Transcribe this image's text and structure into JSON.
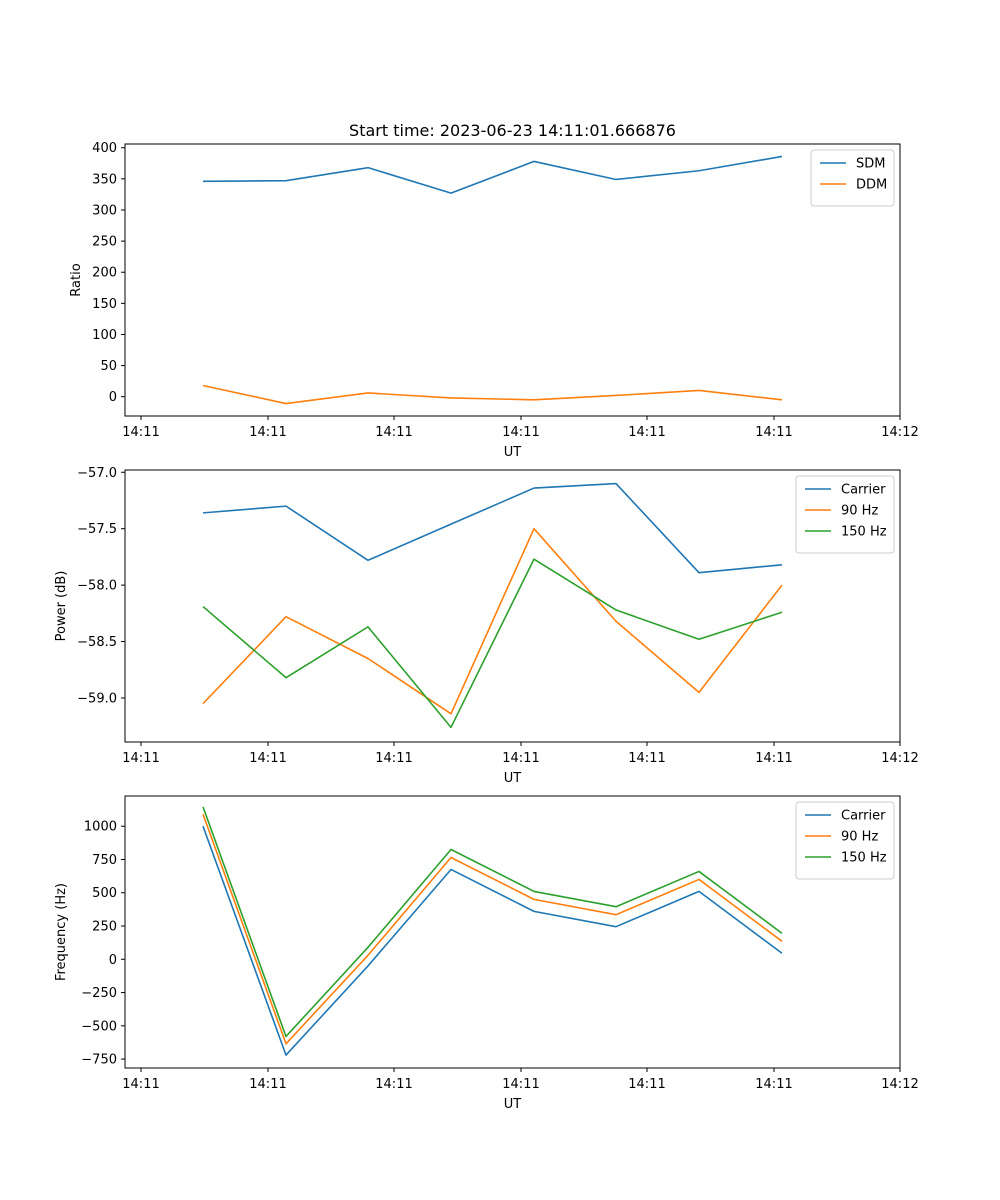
{
  "title": "Start time: 2023-06-23 14:11:01.666876",
  "chart_data": [
    {
      "type": "line",
      "ylabel": "Ratio",
      "xlabel": "UT",
      "x_tick_labels": [
        "14:11",
        "14:11",
        "14:11",
        "14:11",
        "14:11",
        "14:11",
        "14:12"
      ],
      "y_ticks": [
        0,
        50,
        100,
        150,
        200,
        250,
        300,
        350,
        400
      ],
      "ylim": [
        -31,
        406
      ],
      "legend_position": "top-right",
      "grid": false,
      "series": [
        {
          "name": "SDM",
          "color": "#1f77b4",
          "values": [
            346,
            347,
            368,
            327,
            378,
            349,
            363,
            386
          ]
        },
        {
          "name": "DDM",
          "color": "#ff7f0e",
          "values": [
            18,
            -11,
            6,
            -2,
            -5,
            2,
            10,
            -5
          ]
        }
      ]
    },
    {
      "type": "line",
      "ylabel": "Power (dB)",
      "xlabel": "UT",
      "x_tick_labels": [
        "14:11",
        "14:11",
        "14:11",
        "14:11",
        "14:11",
        "14:11",
        "14:12"
      ],
      "y_ticks": [
        -59.0,
        -58.5,
        -58.0,
        -57.5,
        -57.0
      ],
      "y_tick_labels": [
        "−59.0",
        "−58.5",
        "−58.0",
        "−57.5",
        "−57.0"
      ],
      "ylim": [
        -59.39,
        -56.98
      ],
      "legend_position": "top-right",
      "grid": false,
      "series": [
        {
          "name": "Carrier",
          "color": "#1f77b4",
          "values": [
            -57.36,
            -57.3,
            -57.78,
            -57.46,
            -57.14,
            -57.1,
            -57.89,
            -57.82
          ]
        },
        {
          "name": "90 Hz",
          "color": "#ff7f0e",
          "values": [
            -59.05,
            -58.28,
            -58.65,
            -59.14,
            -57.5,
            -58.32,
            -58.95,
            -58.0
          ]
        },
        {
          "name": "150 Hz",
          "color": "#2ca02c",
          "values": [
            -58.19,
            -58.82,
            -58.37,
            -59.26,
            -57.77,
            -58.22,
            -58.48,
            -58.24
          ]
        }
      ]
    },
    {
      "type": "line",
      "ylabel": "Frequency (Hz)",
      "xlabel": "UT",
      "x_tick_labels": [
        "14:11",
        "14:11",
        "14:11",
        "14:11",
        "14:11",
        "14:11",
        "14:12"
      ],
      "y_ticks": [
        -750,
        -500,
        -250,
        0,
        250,
        500,
        750,
        1000
      ],
      "y_tick_labels": [
        "−750",
        "−500",
        "−250",
        "0",
        "250",
        "500",
        "750",
        "1000"
      ],
      "ylim": [
        -817,
        1227
      ],
      "legend_position": "top-right",
      "grid": false,
      "series": [
        {
          "name": "Carrier",
          "color": "#1f77b4",
          "values": [
            1000,
            -720,
            -50,
            675,
            360,
            245,
            510,
            45
          ]
        },
        {
          "name": "90 Hz",
          "color": "#ff7f0e",
          "values": [
            1090,
            -635,
            30,
            765,
            450,
            335,
            600,
            135
          ]
        },
        {
          "name": "150 Hz",
          "color": "#2ca02c",
          "values": [
            1145,
            -580,
            90,
            825,
            510,
            395,
            660,
            195
          ]
        }
      ]
    }
  ]
}
